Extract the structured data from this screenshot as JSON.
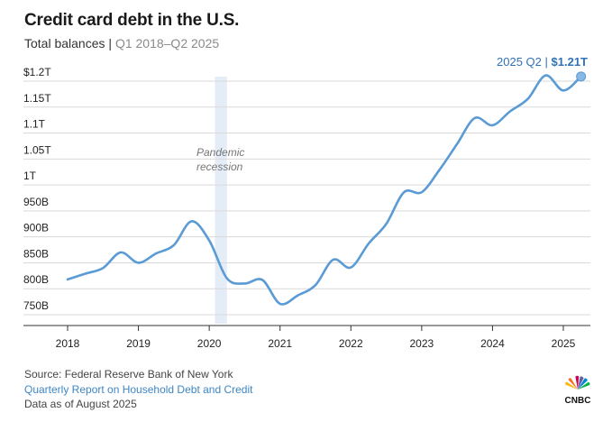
{
  "header": {
    "title": "Credit card debt in the U.S.",
    "subtitle_main": "Total balances",
    "subtitle_sep": "|",
    "subtitle_range": "Q1 2018–Q2 2025"
  },
  "chart_data": {
    "type": "line",
    "title": "Credit card debt in the U.S.",
    "subtitle": "Total balances | Q1 2018–Q2 2025",
    "xlabel": "",
    "ylabel": "",
    "unit": "billions of dollars",
    "xlim": [
      2018,
      2025.5
    ],
    "ylim": [
      745,
      1210
    ],
    "grid": true,
    "x_ticks": [
      2018,
      2019,
      2020,
      2021,
      2022,
      2023,
      2024,
      2025
    ],
    "x_tick_labels": [
      "2018",
      "2019",
      "2020",
      "2021",
      "2022",
      "2023",
      "2024",
      "2025"
    ],
    "y_ticks": [
      750,
      800,
      850,
      900,
      950,
      1000,
      1050,
      1100,
      1150,
      1200
    ],
    "y_tick_labels": [
      "750B",
      "800B",
      "850B",
      "900B",
      "950B",
      "1T",
      "1.05T",
      "1.1T",
      "1.15T",
      "$1.2T"
    ],
    "series": [
      {
        "name": "Total credit card balances",
        "color": "#5b9bd5",
        "x": [
          2018.0,
          2018.25,
          2018.5,
          2018.75,
          2019.0,
          2019.25,
          2019.5,
          2019.75,
          2020.0,
          2020.25,
          2020.5,
          2020.75,
          2021.0,
          2021.25,
          2021.5,
          2021.75,
          2022.0,
          2022.25,
          2022.5,
          2022.75,
          2023.0,
          2023.25,
          2023.5,
          2023.75,
          2024.0,
          2024.25,
          2024.5,
          2024.75,
          2025.0,
          2025.25
        ],
        "y": [
          818,
          829,
          840,
          870,
          850,
          868,
          884,
          930,
          893,
          820,
          810,
          817,
          771,
          787,
          807,
          856,
          841,
          887,
          925,
          986,
          986,
          1029,
          1079,
          1129,
          1115,
          1142,
          1166,
          1211,
          1182,
          1209
        ]
      }
    ],
    "shaded_regions": [
      {
        "label": "Pandemic recession",
        "x_start": 2020.08,
        "x_end": 2020.25
      }
    ],
    "annotations": [
      {
        "text_period": "2025 Q2",
        "text_sep": "|",
        "text_value": "$1.21T",
        "x": 2025.25,
        "y": 1209
      }
    ]
  },
  "footer": {
    "source": "Source: Federal Reserve Bank of New York",
    "report_link": "Quarterly Report on Household Debt and Credit",
    "data_note": "Data as of August 2025"
  },
  "brand": {
    "logo_text": "CNBC"
  },
  "colors": {
    "line": "#5b9bd5",
    "shade": "#e4edf7",
    "grid": "#d9d9d9",
    "axis": "#333333",
    "link": "#3d86c6"
  }
}
